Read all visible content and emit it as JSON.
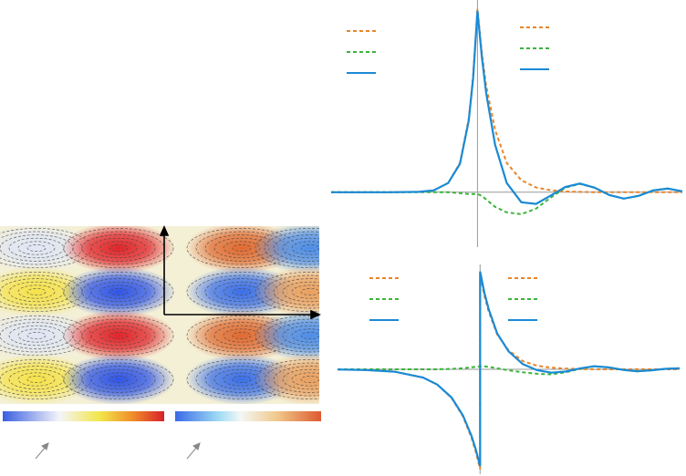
{
  "chart_data": [
    {
      "type": "line",
      "x": [
        -5,
        -4,
        -3,
        -2,
        -1.5,
        -1,
        -0.6,
        -0.3,
        -0.15,
        0,
        0.15,
        0.3,
        0.6,
        1,
        1.5,
        2,
        2.5,
        3,
        3.5,
        4,
        4.5,
        5,
        5.5,
        6,
        6.5,
        7
      ],
      "xlim": [
        -5,
        7
      ],
      "ylim": [
        -0.3,
        1.05
      ],
      "series": [
        {
          "color": "#e8862a",
          "dashed": true,
          "values": [
            0,
            0,
            0,
            0.002,
            0.01,
            0.05,
            0.16,
            0.4,
            0.63,
            1,
            0.76,
            0.58,
            0.34,
            0.16,
            0.065,
            0.026,
            0.011,
            0.004,
            0.002,
            0,
            0,
            0,
            0,
            0,
            0,
            0
          ]
        },
        {
          "color": "#3cb43c",
          "dashed": true,
          "values": [
            0,
            0,
            0,
            0,
            0,
            0,
            -0.005,
            -0.01,
            -0.01,
            -0.01,
            -0.02,
            -0.04,
            -0.08,
            -0.11,
            -0.12,
            -0.09,
            -0.03,
            0.025,
            0.045,
            0.025,
            -0.015,
            -0.035,
            -0.02,
            0.01,
            0.02,
            0.005
          ]
        },
        {
          "color": "#1a8ad4",
          "dashed": false,
          "values": [
            0,
            0,
            0,
            0.002,
            0.01,
            0.05,
            0.155,
            0.39,
            0.62,
            0.99,
            0.74,
            0.54,
            0.26,
            0.05,
            -0.055,
            -0.064,
            -0.019,
            0.029,
            0.047,
            0.025,
            -0.015,
            -0.035,
            -0.02,
            0.01,
            0.02,
            0.005
          ]
        }
      ]
    },
    {
      "type": "line",
      "x": [
        -5,
        -4,
        -3,
        -2,
        -1.5,
        -1,
        -0.6,
        -0.3,
        -0.15,
        0,
        0,
        0.15,
        0.3,
        0.6,
        1,
        1.5,
        2,
        2.5,
        3,
        3.5,
        4,
        4.5,
        5,
        5.5,
        6,
        6.5,
        7
      ],
      "xlim": [
        -5,
        7
      ],
      "ylim": [
        -1.05,
        1.05
      ],
      "series": [
        {
          "color": "#e8862a",
          "dashed": true,
          "values": [
            -0.002,
            -0.007,
            -0.024,
            -0.082,
            -0.153,
            -0.287,
            -0.472,
            -0.687,
            -0.829,
            -1,
            0.95,
            0.74,
            0.58,
            0.35,
            0.19,
            0.082,
            0.036,
            0.016,
            0.007,
            0.003,
            0.001,
            0,
            0,
            0,
            0,
            0,
            0
          ]
        },
        {
          "color": "#3cb43c",
          "dashed": true,
          "values": [
            0,
            0,
            0,
            0,
            0,
            0.005,
            0.01,
            0.02,
            0.025,
            0.03,
            0.03,
            0.03,
            0.025,
            0.01,
            -0.01,
            -0.03,
            -0.045,
            -0.05,
            -0.03,
            0.005,
            0.03,
            0.02,
            -0.005,
            -0.02,
            -0.01,
            0.005,
            0.01
          ]
        },
        {
          "color": "#1a8ad4",
          "dashed": false,
          "values": [
            -0.002,
            -0.007,
            -0.024,
            -0.082,
            -0.153,
            -0.282,
            -0.462,
            -0.667,
            -0.804,
            -0.97,
            0.98,
            0.77,
            0.605,
            0.36,
            0.18,
            0.052,
            -0.009,
            -0.034,
            -0.023,
            0.008,
            0.031,
            0.02,
            -0.005,
            -0.02,
            -0.01,
            0.005,
            0.01
          ]
        }
      ]
    }
  ]
}
